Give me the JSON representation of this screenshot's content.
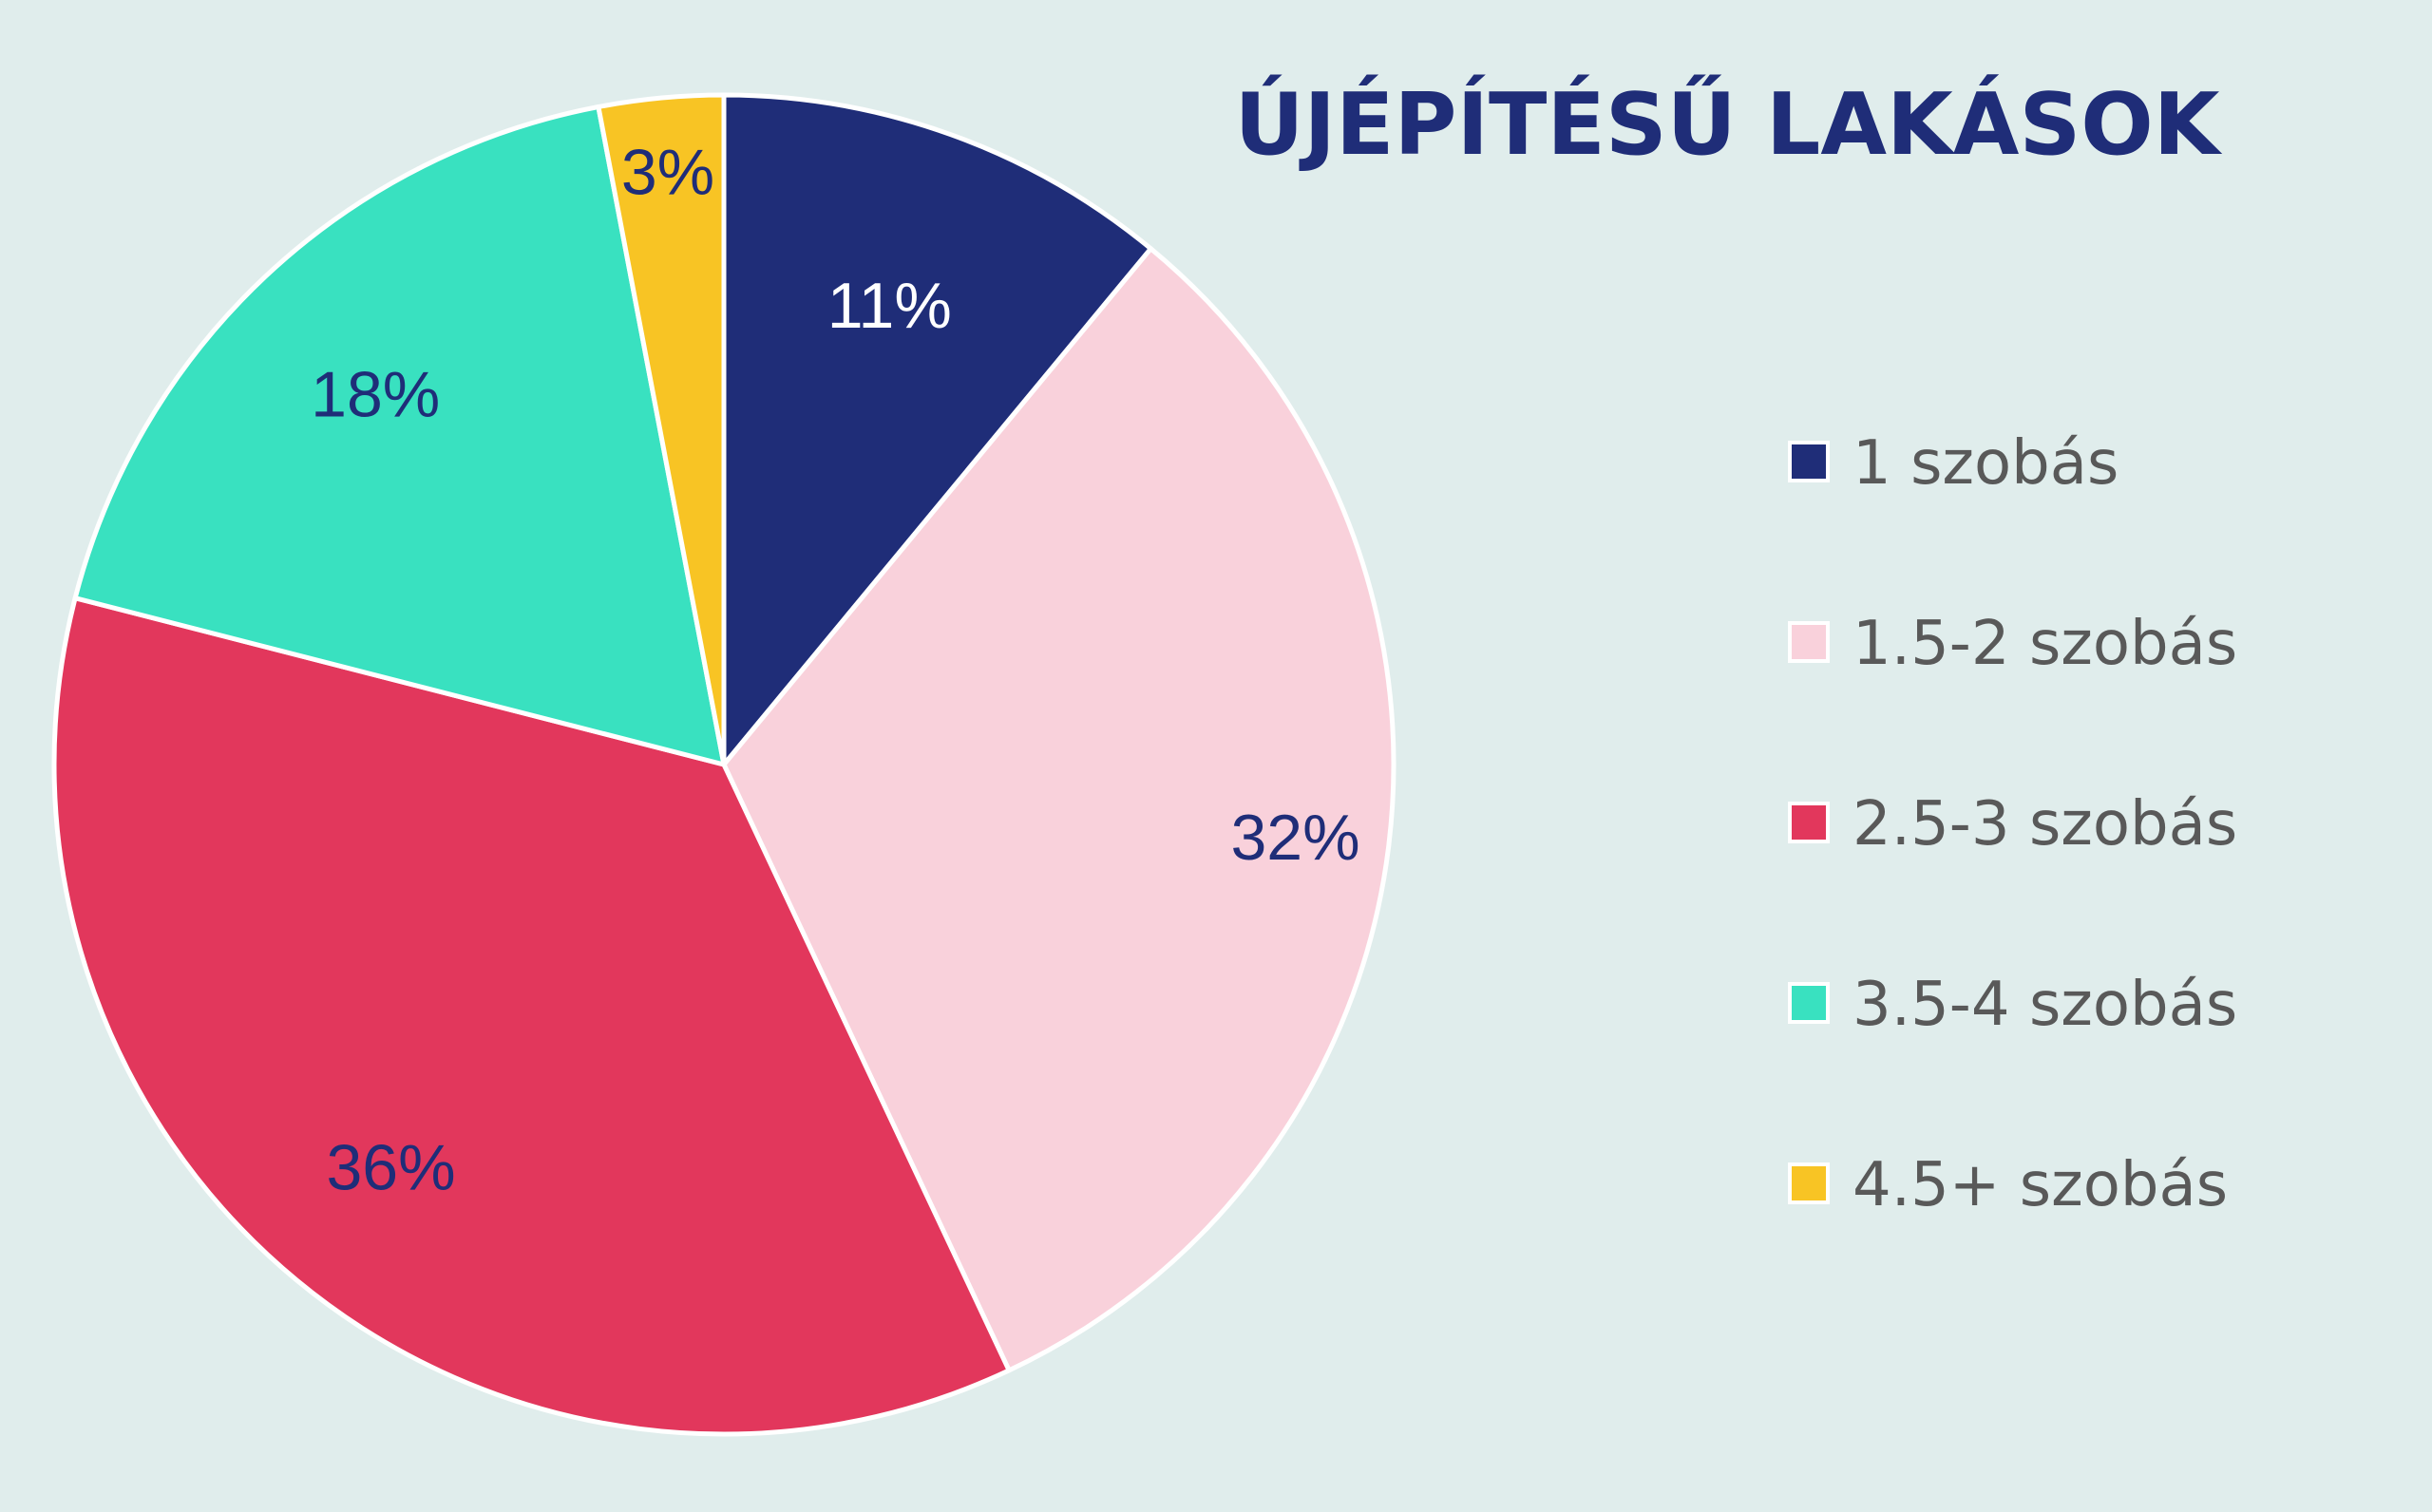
{
  "chart_data": {
    "type": "pie",
    "title": "ÚJÉPÍTÉSŰ LAKÁSOK",
    "categories": [
      "1 szobás",
      "1.5-2 szobás",
      "2.5-3 szobás",
      "3.5-4 szobás",
      "4.5+ szobás"
    ],
    "values": [
      11,
      32,
      36,
      18,
      3
    ],
    "labels": [
      "11%",
      "32%",
      "36%",
      "18%",
      "3%"
    ],
    "colors": [
      "#1f2d78",
      "#f9d1db",
      "#e2375c",
      "#39e1c0",
      "#f8c424"
    ],
    "label_colors": [
      "#ffffff",
      "#1f2d78",
      "#1f2d78",
      "#1f2d78",
      "#1f2d78"
    ],
    "slice_border_color": "#ffffff",
    "background": "#e0edec",
    "start_angle": "12 o'clock",
    "direction": "clockwise",
    "legend_position": "right"
  }
}
